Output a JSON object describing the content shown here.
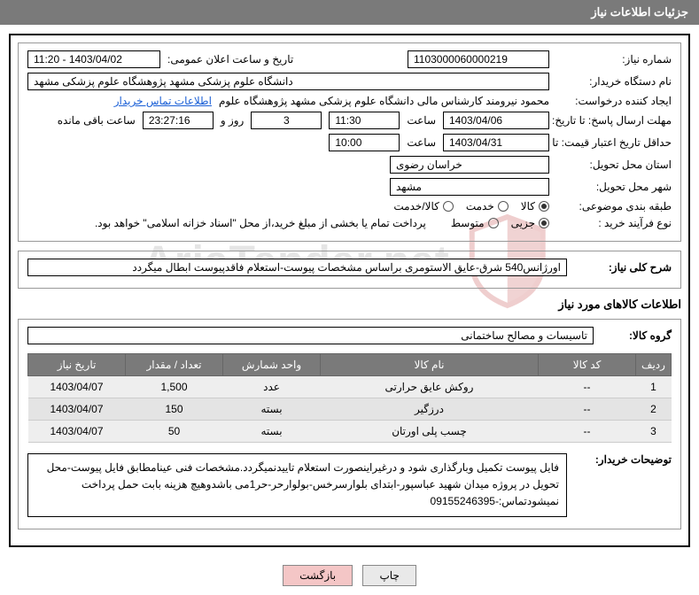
{
  "header": {
    "title": "جزئیات اطلاعات نیاز"
  },
  "info": {
    "need_no_label": "شماره نیاز:",
    "need_no": "1103000060000219",
    "ann_dt_label": "تاریخ و ساعت اعلان عمومی:",
    "ann_dt": "1403/04/02 - 11:20",
    "buyer_org_label": "نام دستگاه خریدار:",
    "buyer_org": "دانشگاه علوم پزشکی مشهد   پژوهشگاه علوم پزشکی مشهد",
    "requester_label": "ایجاد کننده درخواست:",
    "requester": "محمود نیرومند کارشناس مالی دانشگاه علوم پزشکی مشهد   پژوهشگاه علوم ",
    "contact_link": "اطلاعات تماس خریدار",
    "reply_deadline_label": "مهلت ارسال پاسخ: تا تاریخ:",
    "reply_date": "1403/04/06",
    "time_label": "ساعت",
    "reply_time": "11:30",
    "days_remain": "3",
    "days_remain_word": "روز و",
    "time_remain": "23:27:16",
    "time_remain_word": "ساعت باقی مانده",
    "price_valid_label": "حداقل تاریخ اعتبار قیمت: تا تاریخ:",
    "price_valid_date": "1403/04/31",
    "price_valid_time": "10:00",
    "delivery_province_label": "استان محل تحویل:",
    "delivery_province": "خراسان رضوی",
    "delivery_city_label": "شهر محل تحویل:",
    "delivery_city": "مشهد",
    "category_label": "طبقه بندی موضوعی:",
    "cat_r1": "کالا",
    "cat_r2": "خدمت",
    "cat_r3": "کالا/خدمت",
    "process_label": "نوع فرآیند خرید :",
    "proc_r1": "جزیی",
    "proc_r2": "متوسط",
    "proc_note": "پرداخت تمام یا بخشی از مبلغ خرید،از محل \"اسناد خزانه اسلامی\" خواهد بود.",
    "total_desc_label": "شرح کلی نیاز:",
    "total_desc": "اورژانس540 شرق-عایق الاستومری براساس مشخصات پیوست-استعلام فاقدپیوست ابطال میگردد",
    "goods_group_label": "گروه کالا:",
    "goods_group": "تاسیسات و مصالح ساختمانی",
    "buyer_notes_label": "توضیحات خریدار:",
    "buyer_notes": "فایل پیوست تکمیل وبارگذاری شود و درغیراینصورت استعلام تاییدنمیگردد.مشخصات فنی عینامطابق فایل پیوست-محل تحویل در پروژه میدان شهید عباسپور-ابتدای بلوارسرخس-بولوارحر-حر1می باشدوهیچ هزینه بابت حمل  پرداخت نمیشودتماس:-09155246395"
  },
  "goods_section_title": "اطلاعات کالاهای مورد نیاز",
  "table": {
    "columns": [
      "ردیف",
      "کد کالا",
      "نام کالا",
      "واحد شمارش",
      "تعداد / مقدار",
      "تاریخ نیاز"
    ],
    "col_widths": [
      "40px",
      "110px",
      "auto",
      "110px",
      "110px",
      "110px"
    ],
    "rows": [
      [
        "1",
        "--",
        "روکش عایق حرارتی",
        "عدد",
        "1,500",
        "1403/04/07"
      ],
      [
        "2",
        "--",
        "درزگیر",
        "بسته",
        "150",
        "1403/04/07"
      ],
      [
        "3",
        "--",
        "چسب پلی اورتان",
        "بسته",
        "50",
        "1403/04/07"
      ]
    ]
  },
  "buttons": {
    "print": "چاپ",
    "back": "بازگشت"
  },
  "colors": {
    "header_bg": "#7a7a7a",
    "link": "#1a5fd6",
    "btn_back_bg": "#f4c6c6",
    "watermark_shield_fill": "#ffffff",
    "watermark_shield_stroke": "#b33",
    "watermark_text": "#999"
  }
}
